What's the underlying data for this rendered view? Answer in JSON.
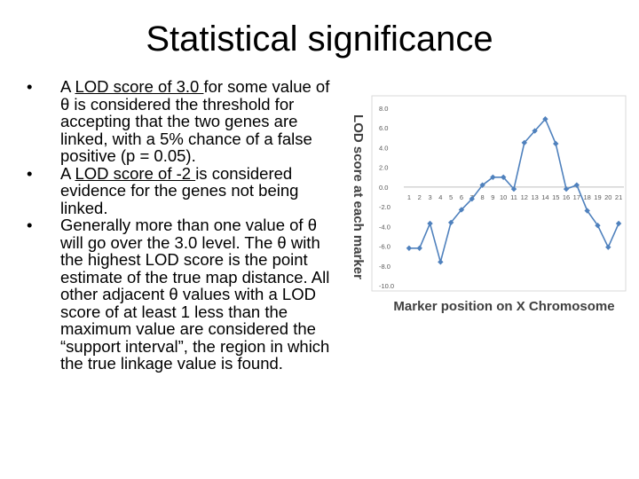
{
  "title": "Statistical significance",
  "bullets": [
    {
      "u": "LOD score of 3.0 ",
      "pre": "A ",
      "post": "for some value of θ is considered the threshold for accepting that the two genes are linked, with a 5% chance of a false positive (p = 0.05)."
    },
    {
      "pre": "A ",
      "u": "LOD score of -2 ",
      "post": "is considered evidence for the genes not being linked."
    },
    {
      "pre": "",
      "u": "",
      "post": "Generally more than one value of θ will go over the 3.0 level.  The θ with the highest LOD score is the point estimate of the true map distance.  All other adjacent θ values with a LOD score of at least 1 less than the maximum value are considered the “support interval”, the region in which the true linkage value is found."
    }
  ],
  "chart_data": {
    "type": "line",
    "xlabel": "Marker position on X Chromosome",
    "ylabel": "LOD score at each marker",
    "ylim": [
      -10,
      8
    ],
    "yticks": [
      "8.0",
      "6.0",
      "4.0",
      "2.0",
      "0.0",
      "-2.0",
      "-4.0",
      "-6.0",
      "-8.0",
      "-10.0"
    ],
    "categories": [
      "1",
      "2",
      "3",
      "4",
      "5",
      "6",
      "7",
      "8",
      "9",
      "10",
      "11",
      "12",
      "13",
      "14",
      "15",
      "16",
      "17",
      "18",
      "19",
      "20",
      "21"
    ],
    "values": [
      -6.2,
      -6.2,
      -3.7,
      -7.6,
      -3.6,
      -2.3,
      -1.2,
      0.2,
      1.0,
      1.0,
      -0.2,
      4.5,
      5.7,
      6.9,
      4.4,
      -0.2,
      0.2,
      -2.4,
      -3.9,
      -6.1,
      -3.7
    ],
    "color": "#4f81bd",
    "grid": false,
    "legend": "none"
  }
}
